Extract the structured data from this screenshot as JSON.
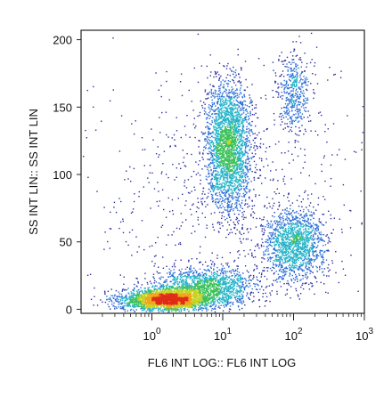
{
  "chart_data": {
    "type": "scatter",
    "title": "",
    "xlabel": "FL6 INT LOG:: FL6 INT LOG",
    "ylabel": "SS INT LIN:: SS INT LIN",
    "x_scale": "log",
    "xlim": [
      0.1,
      1000
    ],
    "ylim": [
      -3,
      207
    ],
    "x_ticks": [
      {
        "value": 1,
        "base": "10",
        "exp": "0"
      },
      {
        "value": 10,
        "base": "10",
        "exp": "1"
      },
      {
        "value": 100,
        "base": "10",
        "exp": "2"
      },
      {
        "value": 1000,
        "base": "10",
        "exp": "3"
      }
    ],
    "y_ticks": [
      {
        "value": 0,
        "label": "0"
      },
      {
        "value": 50,
        "label": "50"
      },
      {
        "value": 100,
        "label": "100"
      },
      {
        "value": 150,
        "label": "150"
      },
      {
        "value": 200,
        "label": "200"
      }
    ],
    "grid": false,
    "legend": "none",
    "color_scale": [
      "#2b2f9e",
      "#2c6fd6",
      "#25b4c9",
      "#3cc15a",
      "#c8d21e",
      "#f0a51b",
      "#e02c18"
    ],
    "populations": [
      {
        "x_center": 1.6,
        "y_center": 7,
        "x_spread_decades": 0.32,
        "y_spread": 4,
        "density": "high"
      },
      {
        "x_center": 6,
        "y_center": 17,
        "x_spread_decades": 0.35,
        "y_spread": 7,
        "density": "medium"
      },
      {
        "x_center": 12,
        "y_center": 120,
        "x_spread_decades": 0.16,
        "y_spread": 24,
        "y_range": [
          55,
          185
        ],
        "density": "high"
      },
      {
        "x_center": 100,
        "y_center": 48,
        "x_spread_decades": 0.22,
        "y_spread": 13,
        "density": "medium"
      },
      {
        "x_center": 100,
        "y_center": 160,
        "x_spread_decades": 0.12,
        "y_spread": 15,
        "density": "low"
      },
      {
        "x_center": 10,
        "y_center": 90,
        "x_spread_decades": 1.0,
        "y_spread": 50,
        "density": "sparse background"
      }
    ]
  }
}
